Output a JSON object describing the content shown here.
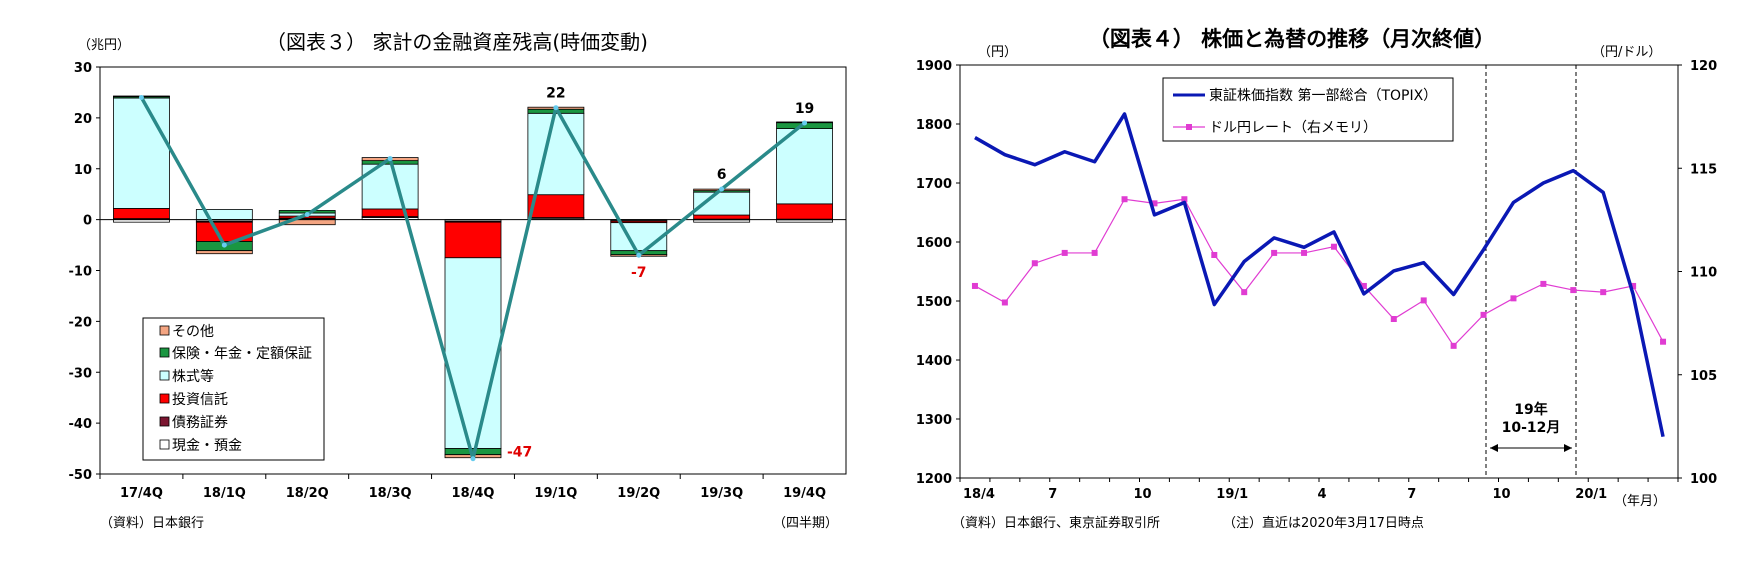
{
  "chart1": {
    "title": "（図表３） 家計の金融資産残高(時価変動)",
    "y_unit": "（兆円）",
    "x_unit": "（四半期）",
    "source": "（資料）日本銀行",
    "type": "stacked-bar-with-line",
    "ylim": [
      -50,
      30
    ],
    "y_ticks": [
      "30",
      "20",
      "10",
      "0",
      "-10",
      "-20",
      "-30",
      "-40",
      "-50"
    ],
    "categories": [
      "17/4Q",
      "18/1Q",
      "18/2Q",
      "18/3Q",
      "18/4Q",
      "19/1Q",
      "19/2Q",
      "19/3Q",
      "19/4Q"
    ],
    "legend": [
      "その他",
      "保険・年金・定額保証",
      "株式等",
      "投資信託",
      "債務証券",
      "現金・預金"
    ],
    "series": [
      {
        "name": "現金・預金",
        "color": "#ffffff",
        "values": [
          -0.5,
          -0.3,
          0.2,
          0.4,
          -0.3,
          0.3,
          -0.2,
          -0.5,
          -0.5
        ]
      },
      {
        "name": "債務証券",
        "color": "#7b1530",
        "values": [
          0.2,
          -0.2,
          0.1,
          0.2,
          -0.2,
          0.1,
          -0.1,
          0.1,
          0.1
        ]
      },
      {
        "name": "投資信託",
        "color": "#ff0000",
        "values": [
          2.0,
          -3.8,
          0.4,
          1.5,
          -7.0,
          4.5,
          -0.3,
          0.8,
          3.0
        ]
      },
      {
        "name": "株式等",
        "color": "#ccffff",
        "values": [
          21.7,
          2.0,
          0.6,
          8.8,
          -37.5,
          16.0,
          -5.5,
          4.5,
          14.8
        ]
      },
      {
        "name": "保険・年金・定額保証",
        "color": "#1a9641",
        "values": [
          0.3,
          -1.8,
          0.5,
          0.7,
          -1.2,
          0.8,
          -0.8,
          0.3,
          1.2
        ]
      },
      {
        "name": "その他",
        "color": "#f4a582",
        "values": [
          0.1,
          -0.6,
          -1.0,
          0.6,
          -0.6,
          0.4,
          -0.3,
          0.3,
          0.1
        ]
      }
    ],
    "total": {
      "color": "#2a8a8a",
      "values": [
        24,
        -5,
        1,
        12,
        -47,
        22,
        -7,
        6,
        19
      ]
    },
    "data_labels": [
      {
        "index": 4,
        "text": "-47",
        "color": "#e00000"
      },
      {
        "index": 5,
        "text": "22",
        "color": "#000000"
      },
      {
        "index": 6,
        "text": "-7",
        "color": "#e00000"
      },
      {
        "index": 7,
        "text": "6",
        "color": "#000000"
      },
      {
        "index": 8,
        "text": "19",
        "color": "#000000"
      }
    ]
  },
  "chart2": {
    "title": "（図表４） 株価と為替の推移（月次終値）",
    "y_unit_left": "（円）",
    "y_unit_right": "（円/ドル）",
    "x_unit": "（年月）",
    "source": "（資料）日本銀行、東京証券取引所",
    "note": "（注）直近は2020年3月17日時点",
    "type": "line",
    "ylim_left": [
      1200,
      1900
    ],
    "ylim_right": [
      100,
      120
    ],
    "y_ticks_left": [
      "1900",
      "1800",
      "1700",
      "1600",
      "1500",
      "1400",
      "1300",
      "1200"
    ],
    "y_ticks_right": [
      "120",
      "115",
      "110",
      "105",
      "100"
    ],
    "x_tick_labels": [
      "18/4",
      "7",
      "10",
      "19/1",
      "4",
      "7",
      "10",
      "20/1"
    ],
    "period_label_line1": "19年",
    "period_label_line2": "10-12月",
    "legend": [
      "東証株価指数 第一部総合（TOPIX）",
      "ドル円レート（右メモリ）"
    ],
    "series": [
      {
        "name": "東証株価指数 第一部総合（TOPIX）",
        "axis": "left",
        "color": "#0a18b4",
        "values": [
          1777,
          1748,
          1731,
          1753,
          1736,
          1817,
          1646,
          1667,
          1494,
          1567,
          1607,
          1591,
          1617,
          1512,
          1551,
          1565,
          1511,
          1587,
          1667,
          1700,
          1721,
          1684,
          1511,
          1270
        ]
      },
      {
        "name": "ドル円レート（右メモリ）",
        "axis": "right",
        "color": "#e03cd2",
        "values": [
          109.3,
          108.5,
          110.4,
          110.9,
          110.9,
          113.5,
          113.3,
          113.5,
          110.8,
          109.0,
          110.9,
          110.9,
          111.2,
          109.3,
          107.7,
          108.6,
          106.4,
          107.9,
          108.7,
          109.4,
          109.1,
          109.0,
          109.3,
          106.6
        ]
      }
    ]
  }
}
